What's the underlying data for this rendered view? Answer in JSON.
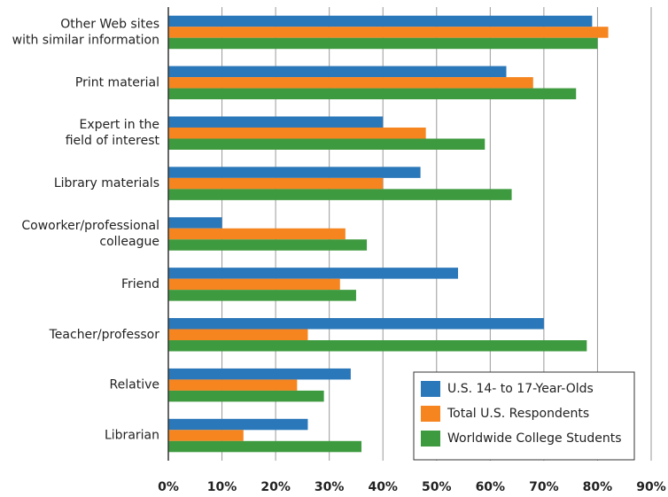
{
  "chart_data": {
    "type": "hbar",
    "categories": [
      "Other Web sites\nwith similar information",
      "Print material",
      "Expert in the\nfield of interest",
      "Library materials",
      "Coworker/professional\ncolleague",
      "Friend",
      "Teacher/professor",
      "Relative",
      "Librarian"
    ],
    "series": [
      {
        "name": "U.S. 14- to 17-Year-Olds",
        "color": "#2a77b9",
        "values": [
          79,
          63,
          40,
          47,
          10,
          54,
          70,
          34,
          26
        ]
      },
      {
        "name": "Total U.S. Respondents",
        "color": "#f6841f",
        "values": [
          82,
          68,
          48,
          40,
          33,
          32,
          26,
          24,
          14
        ]
      },
      {
        "name": "Worldwide College Students",
        "color": "#3e9a3e",
        "values": [
          80,
          76,
          59,
          64,
          37,
          35,
          78,
          29,
          36
        ]
      }
    ],
    "xlim": [
      0,
      90
    ],
    "xticks": [
      {
        "value": 0,
        "label": "0%"
      },
      {
        "value": 10,
        "label": "10%"
      },
      {
        "value": 20,
        "label": "20%"
      },
      {
        "value": 30,
        "label": "30%"
      },
      {
        "value": 40,
        "label": "40%"
      },
      {
        "value": 50,
        "label": "50%"
      },
      {
        "value": 60,
        "label": "60%"
      },
      {
        "value": 70,
        "label": "70%"
      },
      {
        "value": 80,
        "label": "80%"
      },
      {
        "value": 90,
        "label": "90%"
      }
    ],
    "grid": true,
    "legend": "lower right"
  }
}
